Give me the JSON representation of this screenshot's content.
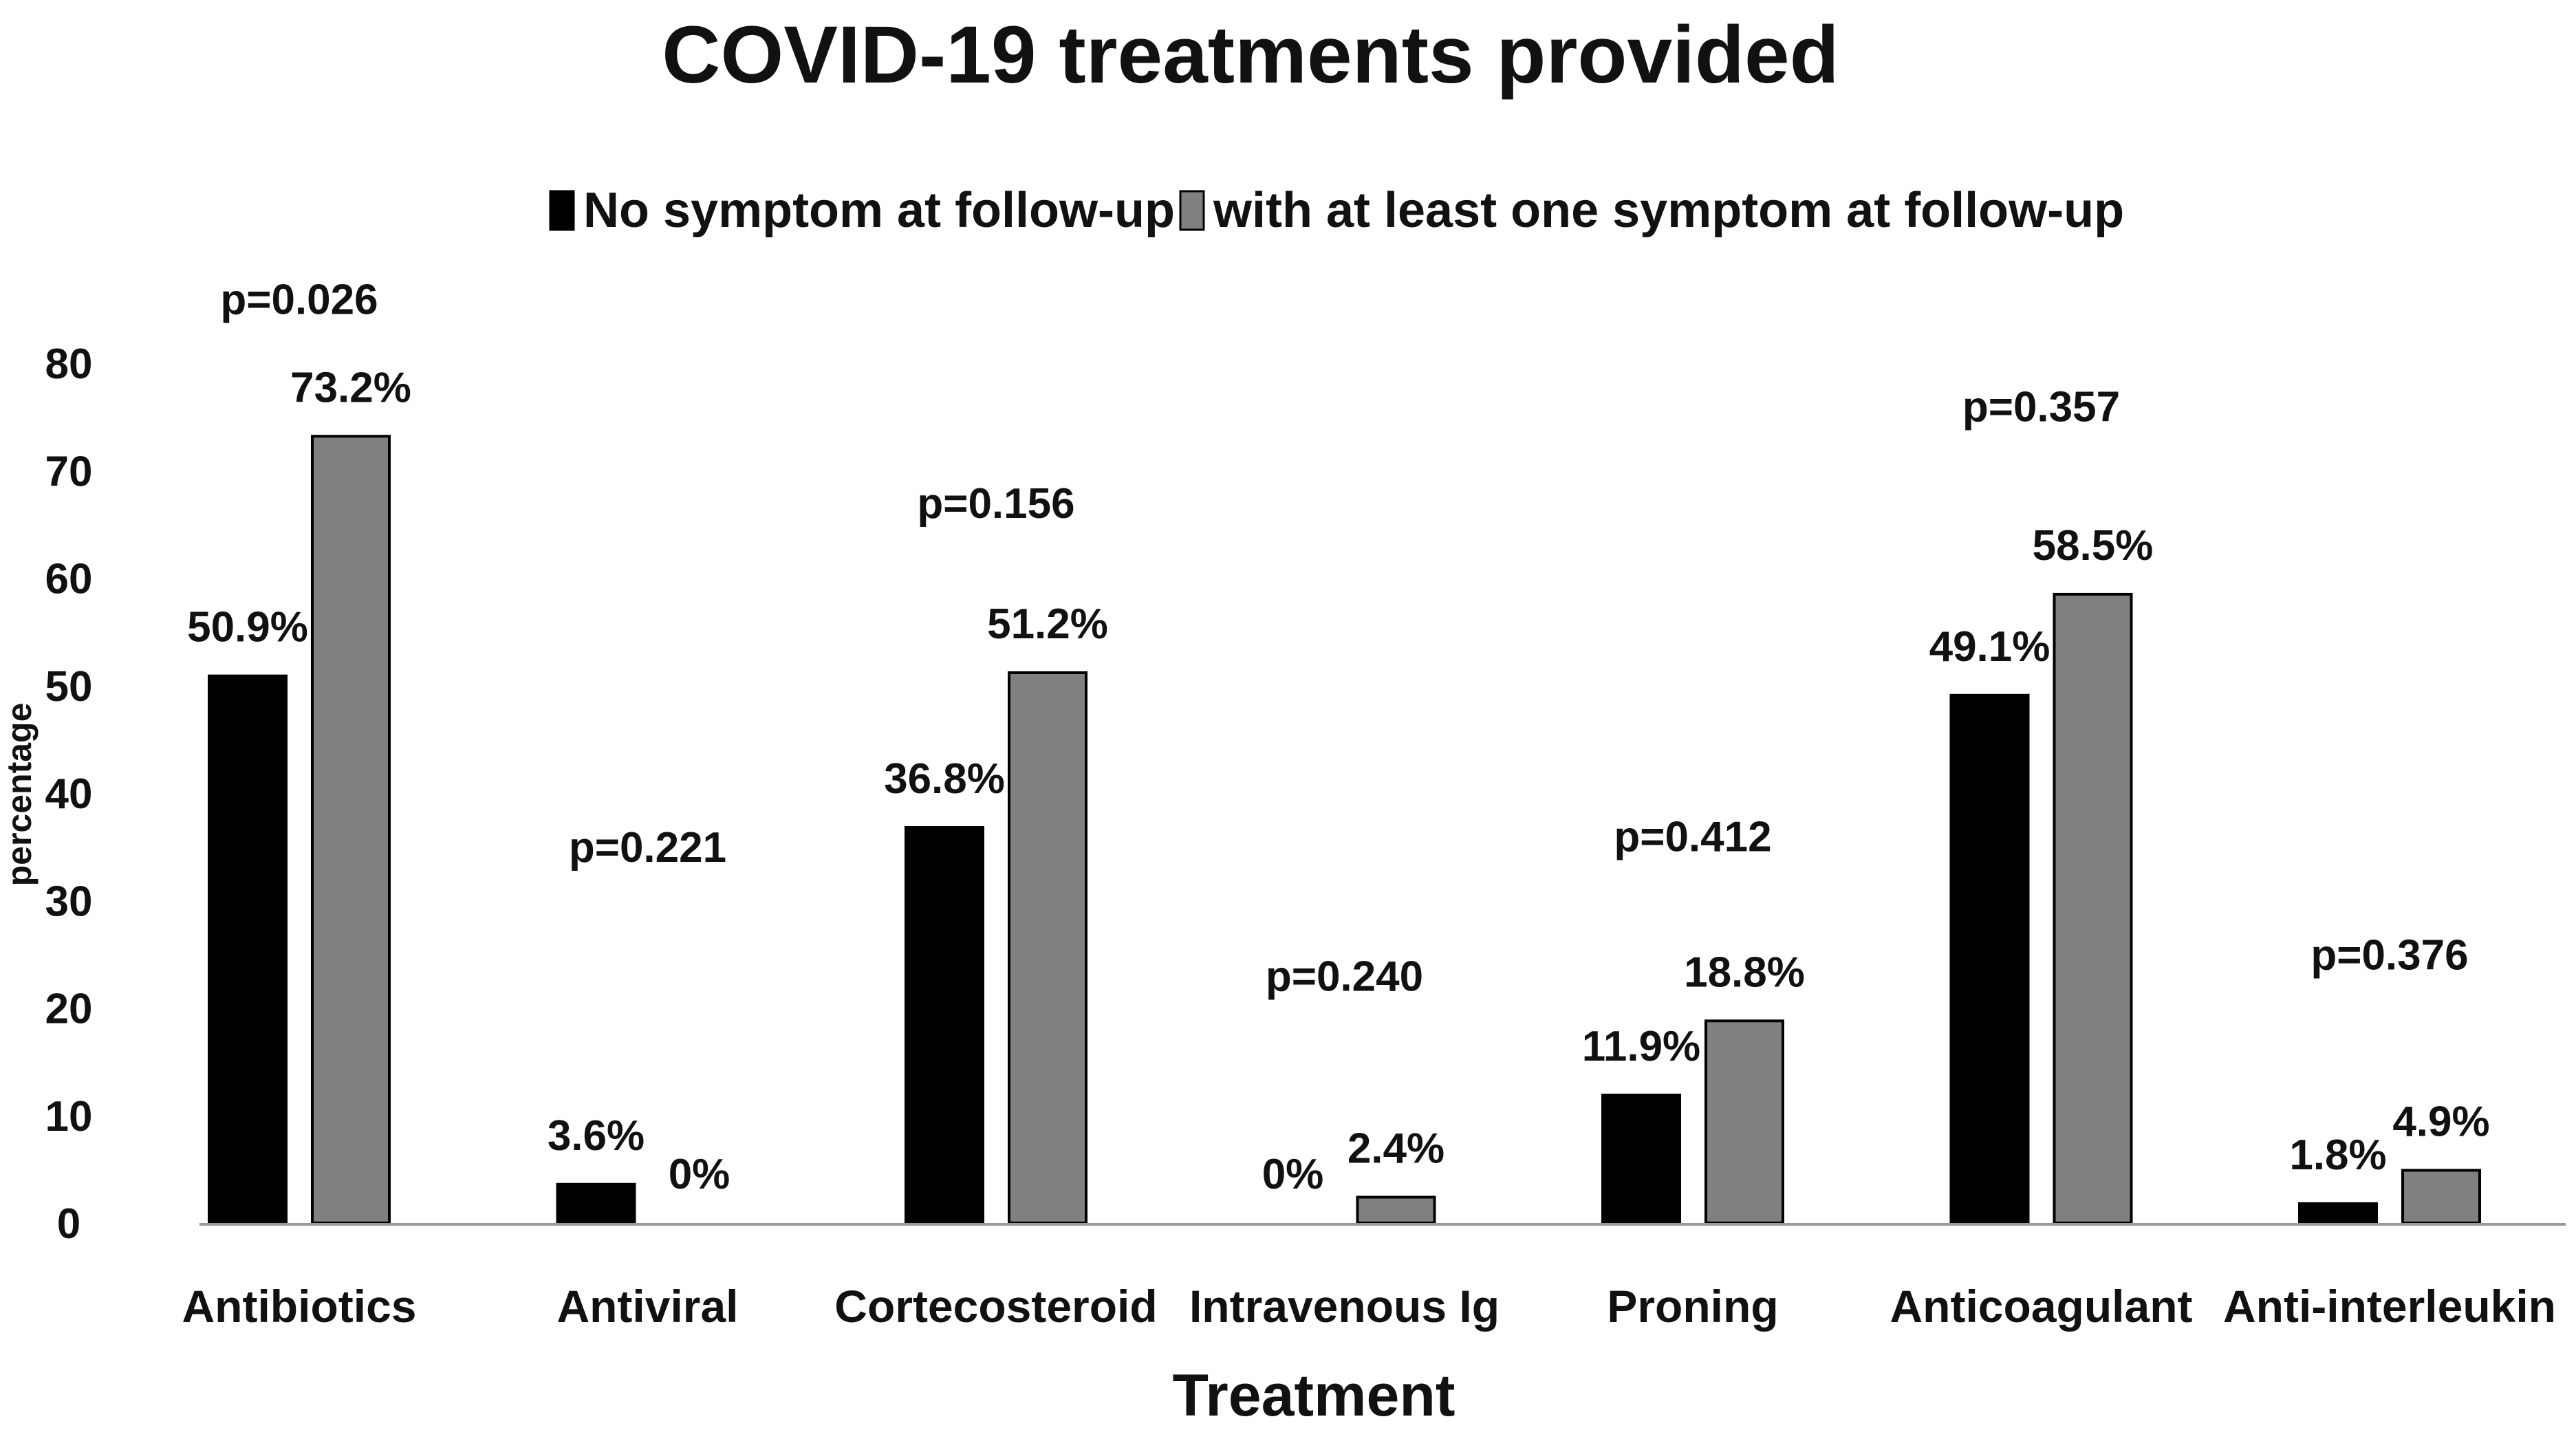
{
  "chart_data": {
    "type": "bar",
    "title": "COVID-19 treatments provided",
    "xlabel": "Treatment",
    "ylabel": "percentage",
    "ylim": [
      0,
      80
    ],
    "yticks": [
      0,
      10,
      20,
      30,
      40,
      50,
      60,
      70,
      80
    ],
    "legend_position": "top",
    "categories": [
      "Antibiotics",
      "Antiviral",
      "Cortecosteroid",
      "Intravenous Ig",
      "Proning",
      "Anticoagulant",
      "Anti-interleukin"
    ],
    "series": [
      {
        "name": "No symptom at follow-up",
        "color": "#000000",
        "values": [
          50.9,
          3.6,
          36.8,
          0,
          11.9,
          49.1,
          1.8
        ],
        "labels": [
          "50.9%",
          "3.6%",
          "36.8%",
          "0%",
          "11.9%",
          "49.1%",
          "1.8%"
        ]
      },
      {
        "name": "with at least one symptom at follow-up",
        "color": "#808080",
        "values": [
          73.2,
          0,
          51.2,
          2.4,
          18.8,
          58.5,
          4.9
        ],
        "labels": [
          "73.2%",
          "0%",
          "51.2%",
          "2.4%",
          "18.8%",
          "58.5%",
          "4.9%"
        ]
      }
    ],
    "p_values": [
      "p=0.026",
      "p=0.221",
      "p=0.156",
      "p=0.240",
      "p=0.412",
      "p=0.357",
      "p=0.376"
    ],
    "p_value_heights": [
      86,
      35,
      67,
      23,
      36,
      76,
      25
    ]
  }
}
